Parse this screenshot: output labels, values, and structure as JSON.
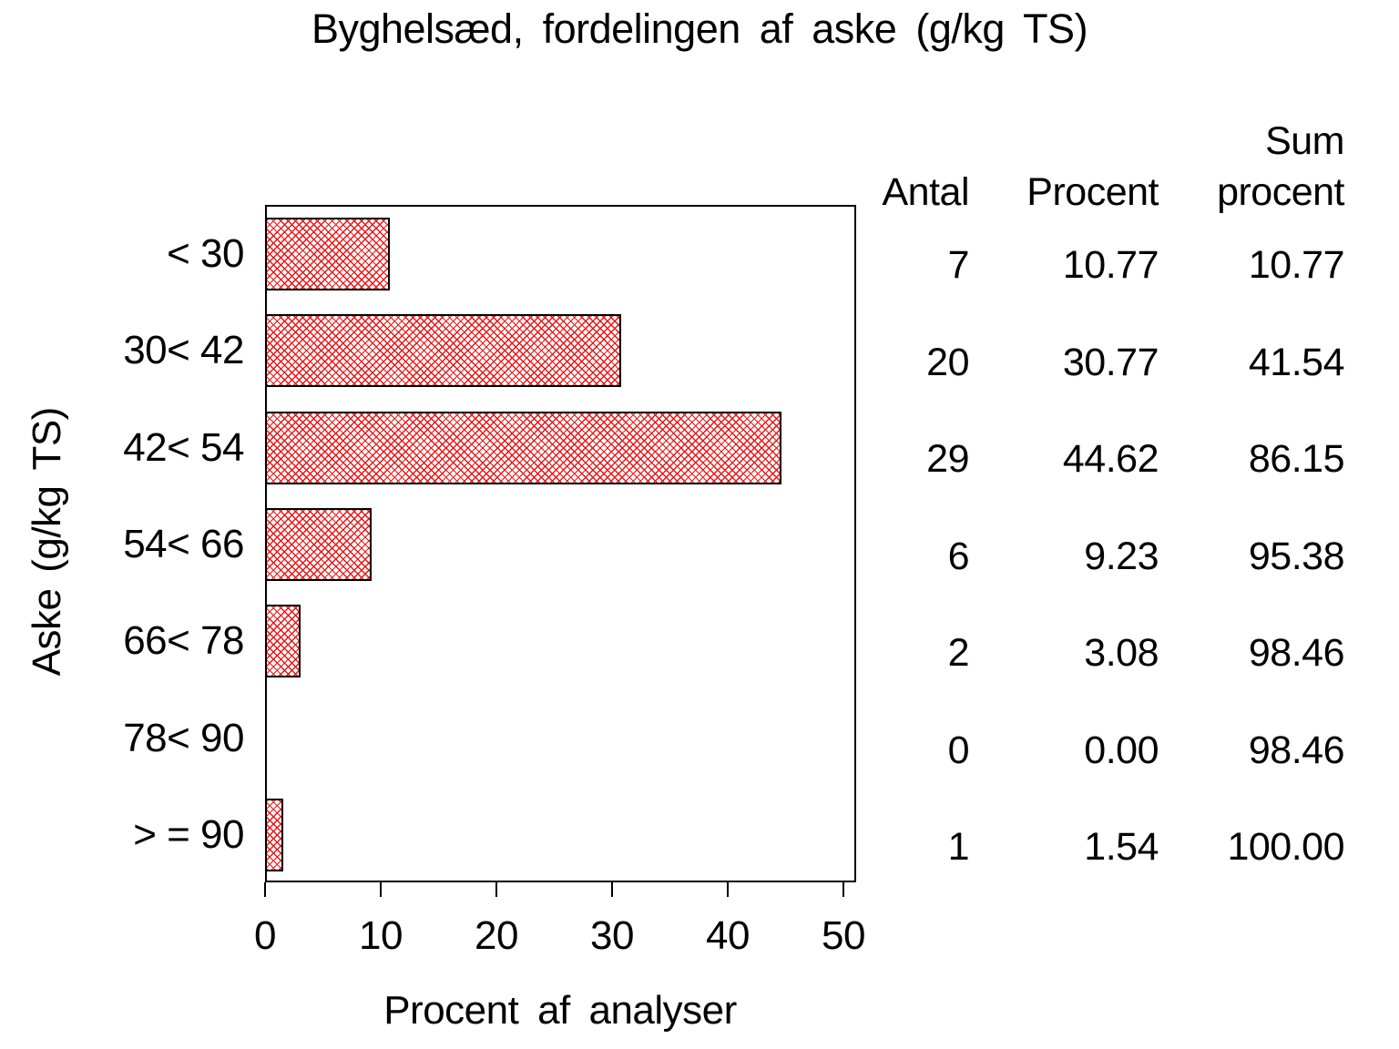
{
  "chart_data": {
    "type": "bar",
    "orientation": "horizontal",
    "title": "Byghelsæd, fordelingen af aske (g/kg TS)",
    "xlabel": "Procent af analyser",
    "ylabel": "Aske (g/kg TS)",
    "categories": [
      "< 30",
      "30< 42",
      "42< 54",
      "54< 66",
      "66< 78",
      "78< 90",
      "> = 90"
    ],
    "values": [
      10.77,
      30.77,
      44.62,
      9.23,
      3.08,
      0.0,
      1.54
    ],
    "counts": [
      7,
      20,
      29,
      6,
      2,
      0,
      1
    ],
    "cumulative_percent": [
      10.77,
      41.54,
      86.15,
      95.38,
      98.46,
      98.46,
      100.0
    ],
    "xlim": [
      0,
      51
    ],
    "xticks": [
      0,
      10,
      20,
      30,
      40,
      50
    ],
    "grid": false,
    "legend": "none",
    "bar_fill_style": "red diagonal crosshatch on white",
    "bar_hatch_color": "#ee1212",
    "bar_border_color": "#000000"
  },
  "table": {
    "columns": [
      {
        "id": "antal",
        "header_lines": [
          "Antal"
        ]
      },
      {
        "id": "procent",
        "header_lines": [
          "Procent"
        ]
      },
      {
        "id": "sum_procent",
        "header_lines": [
          "Sum",
          "procent"
        ]
      }
    ],
    "rows": [
      [
        "7",
        "10.77",
        "10.77"
      ],
      [
        "20",
        "30.77",
        "41.54"
      ],
      [
        "29",
        "44.62",
        "86.15"
      ],
      [
        "6",
        "9.23",
        "95.38"
      ],
      [
        "2",
        "3.08",
        "98.46"
      ],
      [
        "0",
        "0.00",
        "98.46"
      ],
      [
        "1",
        "1.54",
        "100.00"
      ]
    ]
  }
}
